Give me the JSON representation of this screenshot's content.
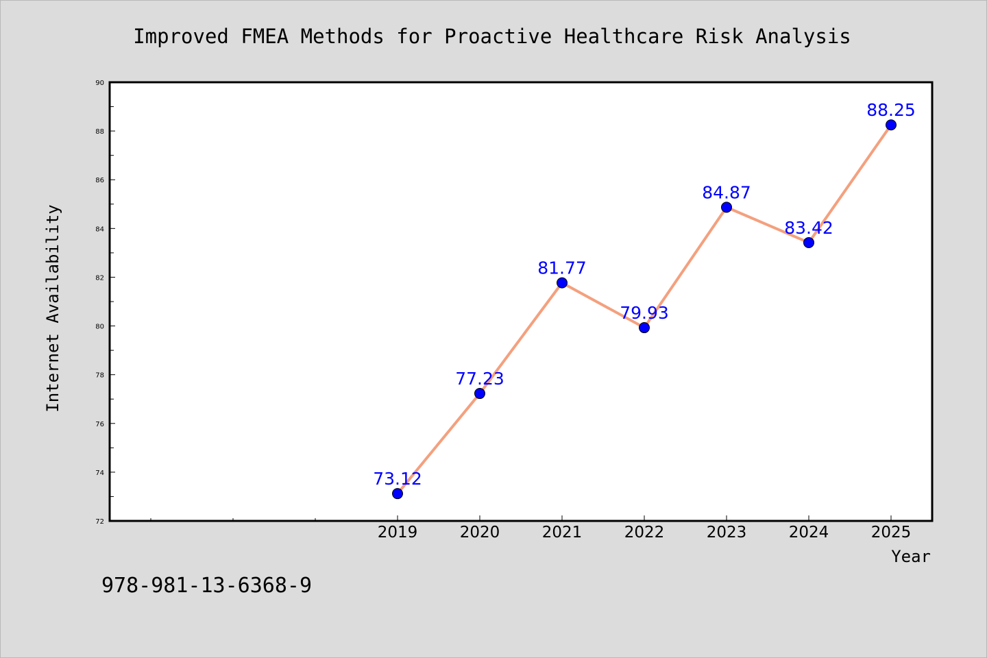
{
  "chart_data": {
    "type": "line",
    "title": "Improved FMEA Methods for Proactive Healthcare Risk Analysis",
    "xlabel": "Year",
    "ylabel": "Internet Availability",
    "categories": [
      "2019",
      "2020",
      "2021",
      "2022",
      "2023",
      "2024",
      "2025"
    ],
    "values": [
      73.12,
      77.23,
      81.77,
      79.93,
      84.87,
      83.42,
      88.25
    ],
    "data_labels": [
      "73.12",
      "77.23",
      "81.77",
      "79.93",
      "84.87",
      "83.42",
      "88.25"
    ],
    "ylim": [
      72,
      90
    ],
    "yticks": [
      "72",
      "74",
      "76",
      "78",
      "80",
      "82",
      "84",
      "86",
      "88",
      "90"
    ],
    "grid": false,
    "line_color": "#f4a07e",
    "marker_color": "#0000ff",
    "label_color": "#0000ff"
  },
  "footer": {
    "isbn": "978-981-13-6368-9"
  }
}
